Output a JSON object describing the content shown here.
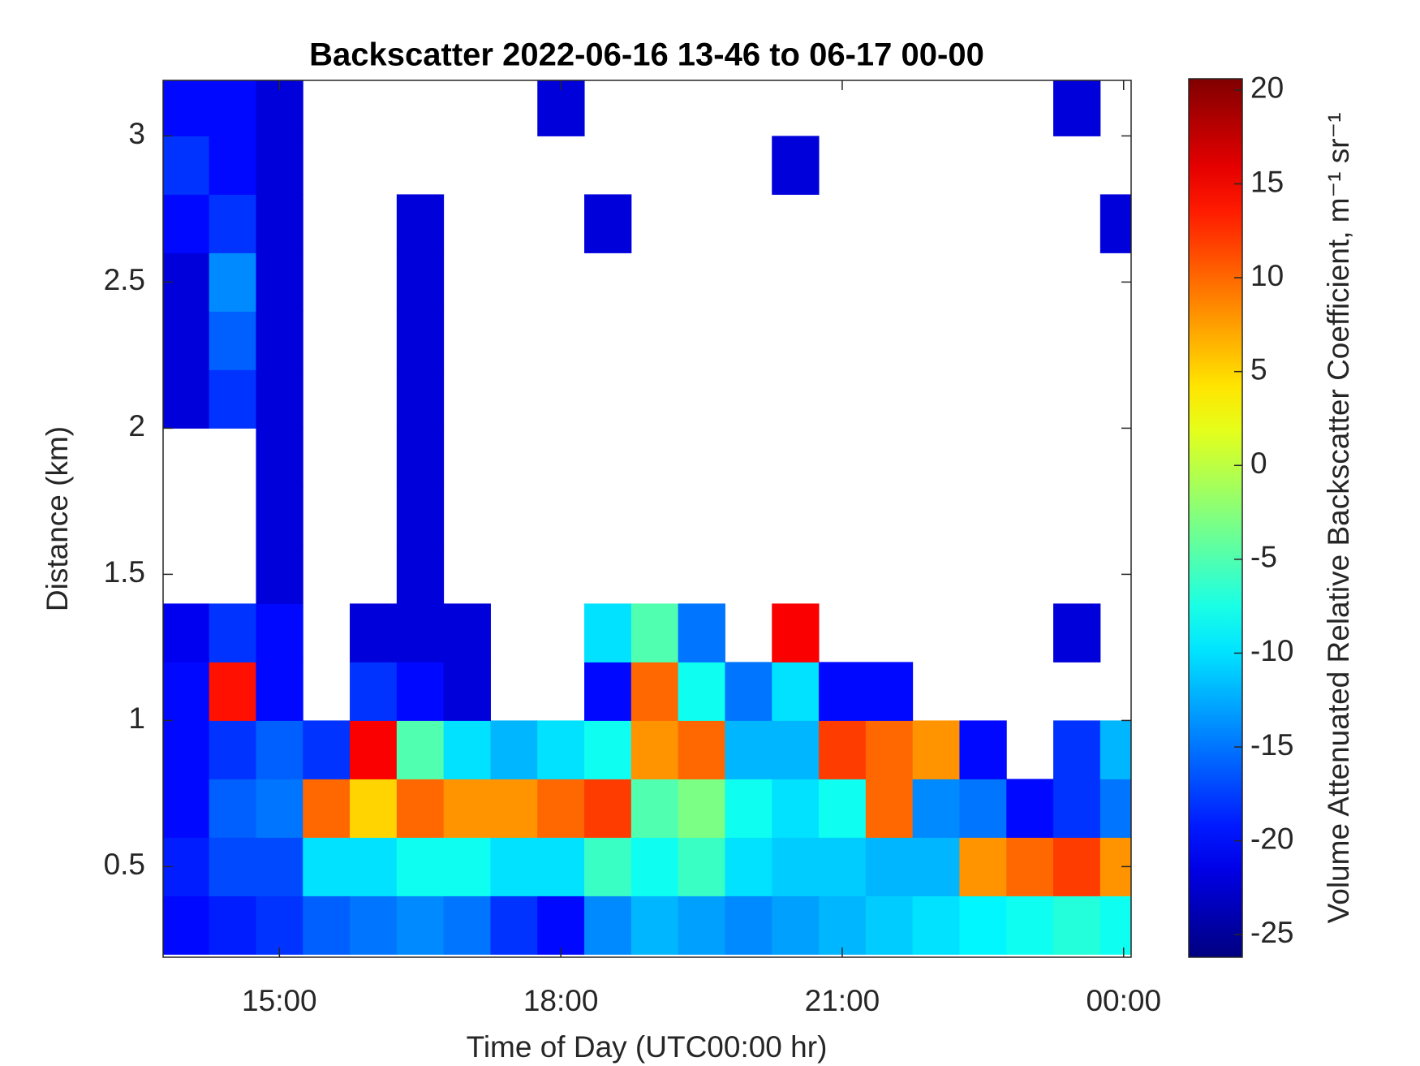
{
  "chart_data": {
    "type": "heatmap",
    "title": "Backscatter 2022-06-16 13-46 to 06-17 00-00",
    "x_label": "Time of Day (UTC00:00 hr)",
    "y_label": "Distance (km)",
    "colorbar_label": "Volume Attenuated Relative Backscatter Coefficient, m⁻¹ sr⁻¹",
    "colormap": "jet",
    "xlim": [
      13.76,
      24.08
    ],
    "xticks": [
      {
        "value": 15,
        "label": "15:00"
      },
      {
        "value": 18,
        "label": "18:00"
      },
      {
        "value": 21,
        "label": "21:00"
      },
      {
        "value": 24,
        "label": "00:00"
      }
    ],
    "ylim": [
      0.19,
      3.19
    ],
    "yticks": [
      0.5,
      1,
      1.5,
      2,
      2.5,
      3
    ],
    "clim": [
      -26.2,
      20.6
    ],
    "cticks": [
      -25,
      -20,
      -15,
      -10,
      -5,
      0,
      5,
      10,
      15,
      20
    ],
    "x": [
      14.0,
      14.5,
      15.0,
      15.5,
      16.0,
      16.5,
      17.0,
      17.5,
      18.0,
      18.5,
      19.0,
      19.5,
      20.0,
      20.5,
      21.0,
      21.5,
      22.0,
      22.5,
      23.0,
      23.5,
      24.0
    ],
    "y": [
      0.3,
      0.5,
      0.7,
      0.9,
      1.1,
      1.3,
      1.5,
      1.7,
      1.9,
      2.1,
      2.3,
      2.5,
      2.7,
      2.9,
      3.1
    ],
    "z": [
      [
        -20,
        -19,
        -18,
        -16,
        -15,
        -14,
        -15,
        -18,
        -20,
        -14,
        -12,
        -13,
        -14,
        -13,
        -12,
        -11,
        -10,
        -9,
        -8,
        -7,
        -8
      ],
      [
        -19,
        -17,
        -17,
        -10,
        -10,
        -8,
        -8,
        -10,
        -10,
        -6,
        -8,
        -6,
        -10,
        -11,
        -11,
        -12,
        -12,
        8,
        10,
        12,
        8
      ],
      [
        -20,
        -16,
        -15,
        10,
        5,
        10,
        8,
        8,
        10,
        12,
        -5,
        -3,
        -8,
        -10,
        -8,
        10,
        -14,
        -15,
        -20,
        -18,
        -15
      ],
      [
        -20,
        -18,
        -16,
        -18,
        15,
        -5,
        -10,
        -12,
        -10,
        -8,
        8,
        10,
        -12,
        -12,
        12,
        10,
        8,
        -20,
        null,
        -18,
        -12
      ],
      [
        -20,
        14,
        -20,
        null,
        -18,
        -20,
        -22,
        null,
        null,
        -20,
        10,
        -8,
        -15,
        -10,
        -20,
        -20,
        null,
        null,
        null,
        null,
        null
      ],
      [
        -21,
        -18,
        -20,
        null,
        -22,
        -22,
        -22,
        null,
        null,
        -10,
        -5,
        -15,
        null,
        15,
        null,
        null,
        null,
        null,
        null,
        -22,
        null
      ],
      [
        null,
        null,
        -22,
        null,
        null,
        -22,
        null,
        null,
        null,
        null,
        null,
        null,
        null,
        null,
        null,
        null,
        null,
        null,
        null,
        null,
        null
      ],
      [
        null,
        null,
        -22,
        null,
        null,
        -22,
        null,
        null,
        null,
        null,
        null,
        null,
        null,
        null,
        null,
        null,
        null,
        null,
        null,
        null,
        null
      ],
      [
        null,
        null,
        -22,
        null,
        null,
        -22,
        null,
        null,
        null,
        null,
        null,
        null,
        null,
        null,
        null,
        null,
        null,
        null,
        null,
        null,
        null
      ],
      [
        -22,
        -18,
        -22,
        null,
        null,
        -22,
        null,
        null,
        null,
        null,
        null,
        null,
        null,
        null,
        null,
        null,
        null,
        null,
        null,
        null,
        null
      ],
      [
        -22,
        -16,
        -22,
        null,
        null,
        -22,
        null,
        null,
        null,
        null,
        null,
        null,
        null,
        null,
        null,
        null,
        null,
        null,
        null,
        null,
        null
      ],
      [
        -22,
        -14,
        -22,
        null,
        null,
        -22,
        null,
        null,
        null,
        null,
        null,
        null,
        null,
        null,
        null,
        null,
        null,
        null,
        null,
        null,
        null
      ],
      [
        -20,
        -18,
        -22,
        null,
        null,
        -22,
        null,
        null,
        null,
        -22,
        null,
        null,
        null,
        null,
        null,
        null,
        null,
        null,
        null,
        null,
        -22
      ],
      [
        -18,
        -20,
        -22,
        null,
        null,
        null,
        null,
        null,
        null,
        null,
        null,
        null,
        null,
        -22,
        null,
        null,
        null,
        null,
        null,
        null,
        null
      ],
      [
        -20,
        -20,
        -22,
        null,
        null,
        null,
        null,
        null,
        -22,
        null,
        null,
        null,
        null,
        null,
        null,
        null,
        null,
        null,
        null,
        -22,
        null
      ]
    ]
  }
}
